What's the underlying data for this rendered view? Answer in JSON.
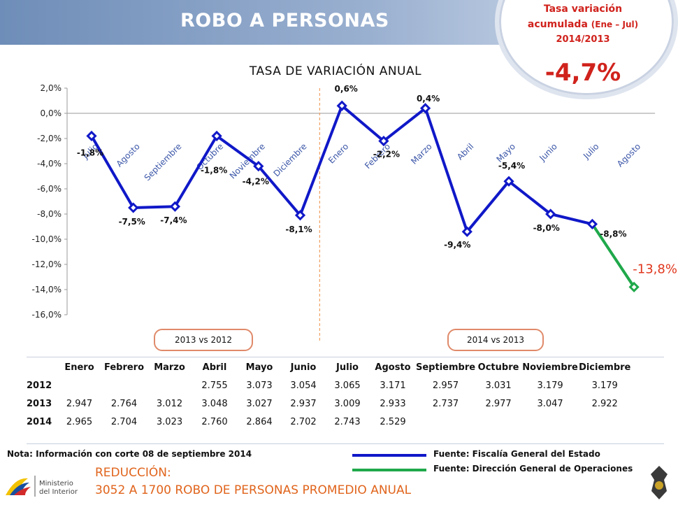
{
  "title": "ROBO A PERSONAS",
  "bubble": {
    "line1": "Tasa variación",
    "line2": "acumulada",
    "line2_small": "(Ene – Jul)",
    "line3": "2014/2013",
    "value": "-4,7%"
  },
  "chart_data": {
    "type": "line",
    "title": "TASA DE VARIACIÓN ANUAL",
    "categories": [
      "Julio",
      "Agosto",
      "Septiembre",
      "Octubre",
      "Noviembre",
      "Diciembre",
      "Enero",
      "Febrero",
      "Marzo",
      "Abril",
      "Mayo",
      "Junio",
      "Julio",
      "Agosto"
    ],
    "ylim": [
      -16,
      2
    ],
    "yticks": [
      "2,0%",
      "0,0%",
      "-2,0%",
      "-4,0%",
      "-6,0%",
      "-8,0%",
      "-10,0%",
      "-12,0%",
      "-14,0%",
      "-16,0%"
    ],
    "grid": false,
    "series": [
      {
        "values": [
          -1.8,
          -7.5,
          -7.4,
          -1.8,
          -4.2,
          -8.1,
          0.6,
          -2.2,
          0.4,
          -9.4,
          -5.4,
          -8.0,
          -8.8,
          null
        ],
        "color": "#1018c8"
      },
      {
        "values": [
          null,
          null,
          null,
          null,
          null,
          null,
          null,
          null,
          null,
          null,
          null,
          null,
          -8.8,
          -13.8
        ],
        "color": "#1fa84a"
      }
    ],
    "data_labels": [
      "-1,8%",
      "-7,5%",
      "-7,4%",
      "-1,8%",
      "-4,2%",
      "-8,1%",
      "0,6%",
      "-2,2%",
      "0,4%",
      "-9,4%",
      "-5,4%",
      "-8,0%",
      "-8,8%",
      "-13,8%"
    ],
    "period_labels": [
      "2013 vs 2012",
      "2014 vs 2013"
    ]
  },
  "table": {
    "columns": [
      "Enero",
      "Febrero",
      "Marzo",
      "Abril",
      "Mayo",
      "Junio",
      "Julio",
      "Agosto",
      "Septiembre",
      "Octubre",
      "Noviembre",
      "Diciembre"
    ],
    "rows": [
      {
        "year": "2012",
        "values": [
          "",
          "",
          "",
          "2.755",
          "3.073",
          "3.054",
          "3.065",
          "3.171",
          "2.957",
          "3.031",
          "3.179",
          "3.179"
        ]
      },
      {
        "year": "2013",
        "values": [
          "2.947",
          "2.764",
          "3.012",
          "3.048",
          "3.027",
          "2.937",
          "3.009",
          "2.933",
          "2.737",
          "2.977",
          "3.047",
          "2.922"
        ]
      },
      {
        "year": "2014",
        "values": [
          "2.965",
          "2.704",
          "3.023",
          "2.760",
          "2.864",
          "2.702",
          "2.743",
          "2.529",
          "",
          "",
          "",
          ""
        ]
      }
    ]
  },
  "note": "Nota: Información con corte 08 de septiembre 2014",
  "legend": [
    {
      "label": "Fuente: Fiscalía General del Estado",
      "color": "#1018c8"
    },
    {
      "label": "Fuente: Dirección General de Operaciones",
      "color": "#1fa84a"
    }
  ],
  "reduction": {
    "line1": "REDUCCIÓN:",
    "line2": "3052 A 1700 ROBO DE PERSONAS PROMEDIO ANUAL"
  },
  "logo": {
    "line1": "Ministerio",
    "line2": "del Interior"
  }
}
